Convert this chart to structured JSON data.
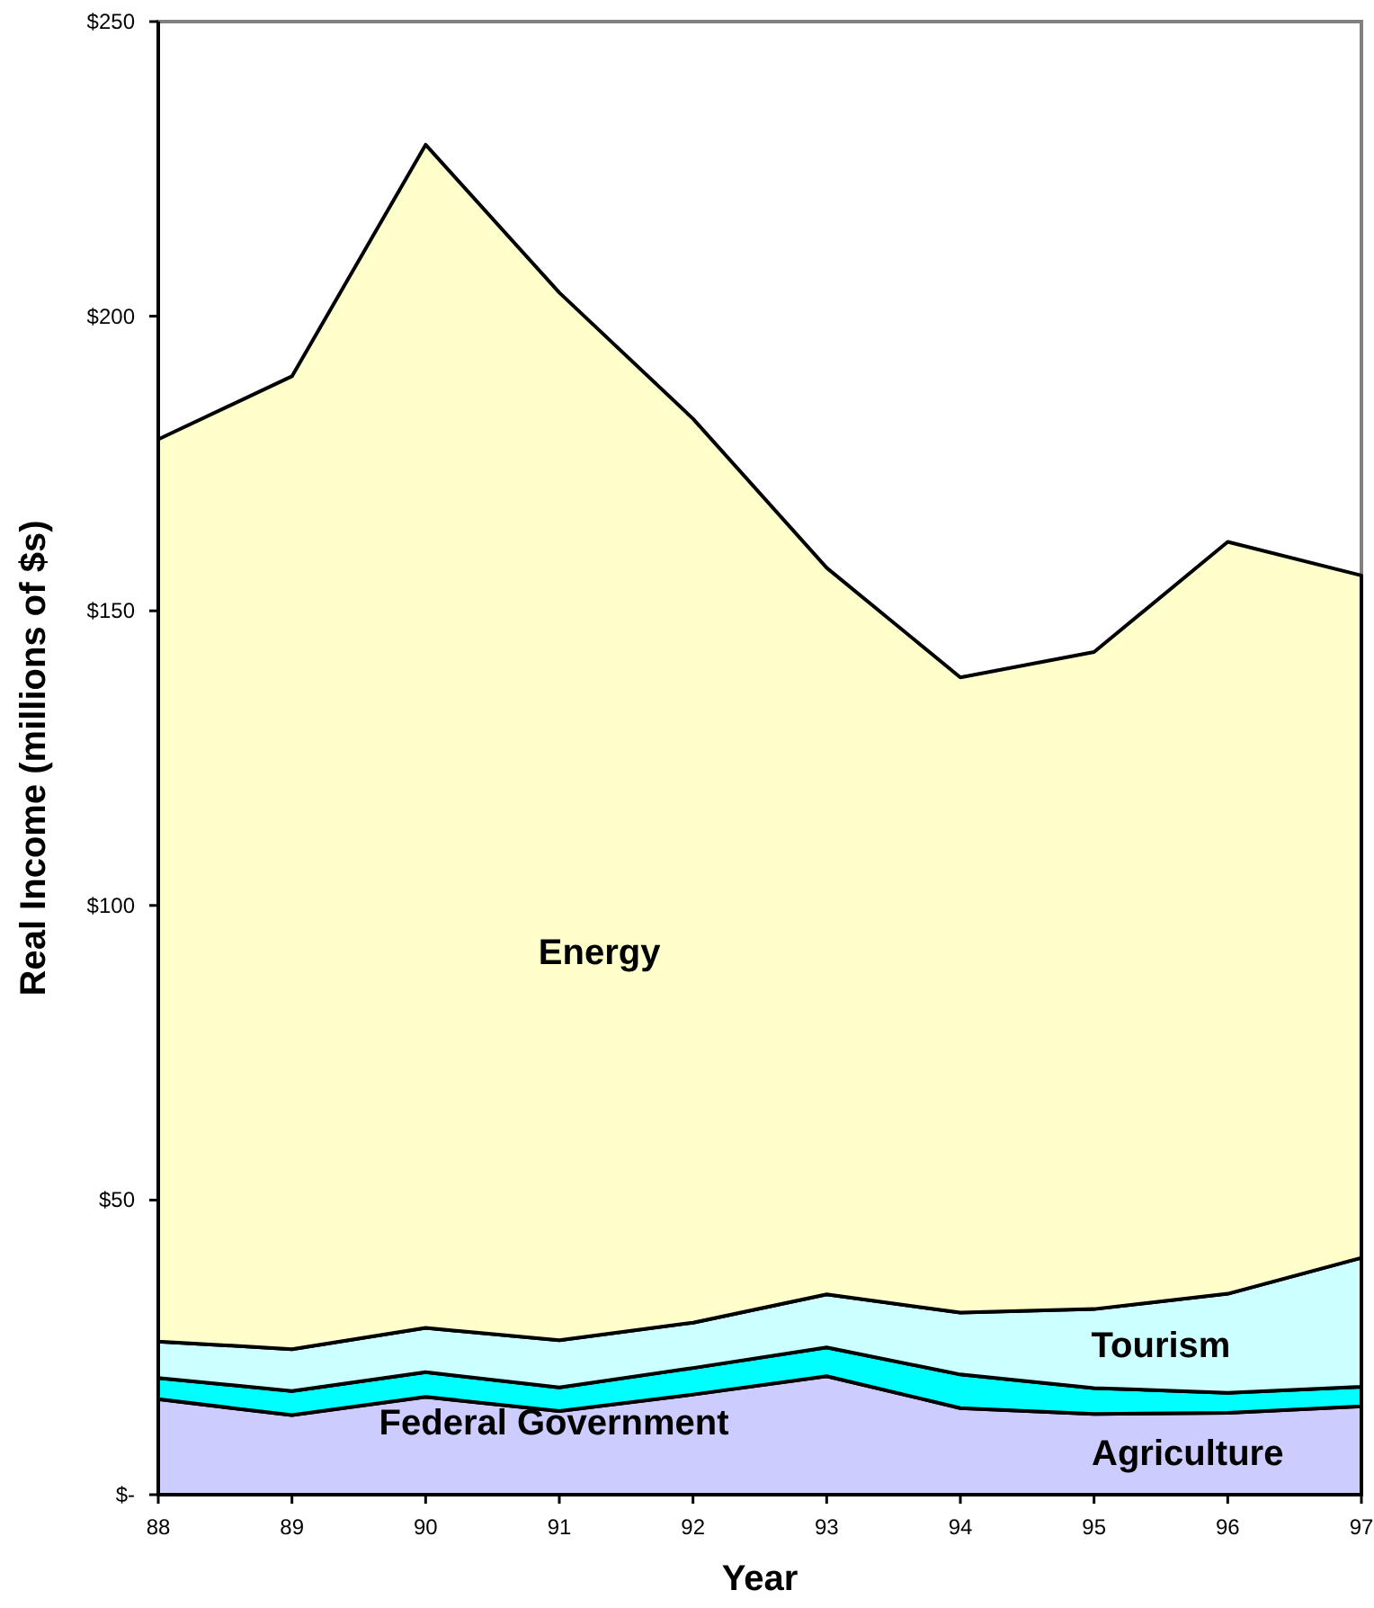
{
  "chart_data": {
    "type": "area",
    "stacked": true,
    "xlabel": "Year",
    "ylabel": "Real Income (millions of $s)",
    "x": [
      88,
      89,
      90,
      91,
      92,
      93,
      94,
      95,
      96,
      97
    ],
    "xlim": [
      88,
      97
    ],
    "xticks": [
      88,
      89,
      90,
      91,
      92,
      93,
      94,
      95,
      96,
      97
    ],
    "ylim": [
      0,
      250
    ],
    "yticks": [
      {
        "value": 0,
        "label": "$-"
      },
      {
        "value": 50,
        "label": "$50"
      },
      {
        "value": 100,
        "label": "$100"
      },
      {
        "value": 150,
        "label": "$150"
      },
      {
        "value": 200,
        "label": "$200"
      },
      {
        "value": 250,
        "label": "$250"
      }
    ],
    "series": [
      {
        "name": "Agriculture",
        "color": "#ccccff",
        "values": [
          16.2,
          13.5,
          16.6,
          14.2,
          17.0,
          20.1,
          14.7,
          13.7,
          13.9,
          15.0
        ]
      },
      {
        "name": "Federal Government",
        "color": "#00ffff",
        "values": [
          3.6,
          4.1,
          4.2,
          4.0,
          4.5,
          4.9,
          5.7,
          4.4,
          3.4,
          3.3
        ]
      },
      {
        "name": "Tourism",
        "color": "#ccffff",
        "values": [
          6.2,
          7.1,
          7.5,
          8.0,
          7.7,
          9.0,
          10.5,
          13.4,
          16.8,
          21.9
        ]
      },
      {
        "name": "Energy",
        "color": "#ffffcc",
        "values": [
          153.1,
          165.1,
          200.8,
          177.8,
          153.4,
          123.3,
          107.8,
          111.5,
          127.6,
          115.8
        ]
      }
    ]
  }
}
